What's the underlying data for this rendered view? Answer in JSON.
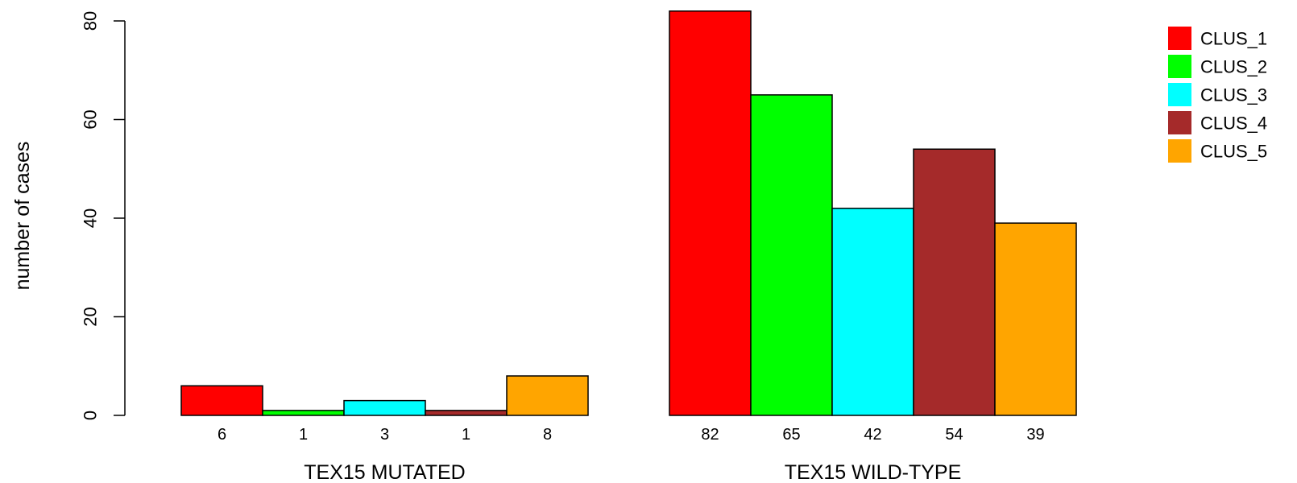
{
  "chart_data": {
    "type": "bar",
    "ylabel": "number of cases",
    "ylim": [
      0,
      80
    ],
    "yticks": [
      0,
      20,
      40,
      60,
      80
    ],
    "grid": false,
    "legend_position": "top-right",
    "groups": [
      {
        "label": "TEX15 MUTATED",
        "values": [
          6,
          1,
          3,
          1,
          8
        ],
        "value_labels": [
          "6",
          "1",
          "3",
          "1",
          "8"
        ]
      },
      {
        "label": "TEX15 WILD-TYPE",
        "values": [
          82,
          65,
          42,
          54,
          39
        ],
        "value_labels": [
          "82",
          "65",
          "42",
          "54",
          "39"
        ]
      }
    ],
    "series": [
      {
        "name": "CLUS_1",
        "color": "#ff0000"
      },
      {
        "name": "CLUS_2",
        "color": "#00ff00"
      },
      {
        "name": "CLUS_3",
        "color": "#00ffff"
      },
      {
        "name": "CLUS_4",
        "color": "#a52a2a"
      },
      {
        "name": "CLUS_5",
        "color": "#ffa500"
      }
    ]
  }
}
